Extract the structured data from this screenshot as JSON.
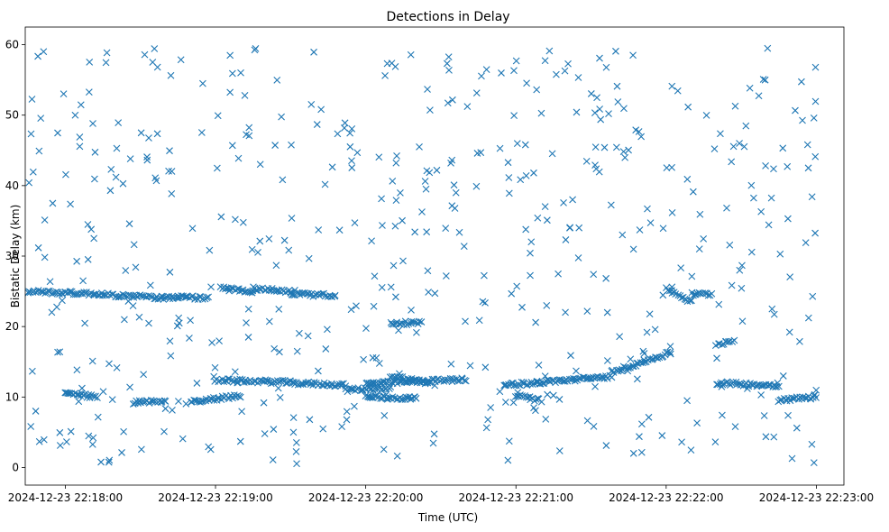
{
  "chart_data": {
    "type": "scatter",
    "title": "Detections in Delay",
    "xlabel": "Time (UTC)",
    "ylabel": "Bistatic Delay (km)",
    "marker": "x",
    "marker_color": "#1f77b4",
    "grid": false,
    "legend": "none",
    "xlim": [
      "2024-12-23 22:17:44",
      "2024-12-23 22:23:11"
    ],
    "ylim": [
      -2.5,
      62.5
    ],
    "x_ticks": [
      "2024-12-23 22:18:00",
      "2024-12-23 22:19:00",
      "2024-12-23 22:20:00",
      "2024-12-23 22:21:00",
      "2024-12-23 22:22:00",
      "2024-12-23 22:23:00"
    ],
    "y_ticks": [
      "0",
      "10",
      "20",
      "30",
      "40",
      "50",
      "60"
    ],
    "series": [
      {
        "points_note": "",
        "x": [],
        "y": []
      }
    ],
    "tracks": [
      {
        "x": [
          "2024-12-23 22:17:45",
          "2024-12-23 22:18:15"
        ],
        "y": [
          25.0,
          24.6
        ]
      },
      {
        "x": [
          "2024-12-23 22:18:16",
          "2024-12-23 22:18:45"
        ],
        "y": [
          24.5,
          24.0
        ]
      },
      {
        "x": [
          "2024-12-23 22:18:45",
          "2024-12-23 22:18:57"
        ],
        "y": [
          24.2,
          24.0
        ]
      },
      {
        "x": [
          "2024-12-23 22:19:02",
          "2024-12-23 22:19:15"
        ],
        "y": [
          25.5,
          25.0
        ]
      },
      {
        "x": [
          "2024-12-23 22:19:15",
          "2024-12-23 22:19:30"
        ],
        "y": [
          25.4,
          25.0
        ]
      },
      {
        "x": [
          "2024-12-23 22:19:30",
          "2024-12-23 22:19:48"
        ],
        "y": [
          24.6,
          24.4
        ]
      },
      {
        "x": [
          "2024-12-23 22:18:00",
          "2024-12-23 22:18:13"
        ],
        "y": [
          10.5,
          10.0
        ]
      },
      {
        "x": [
          "2024-12-23 22:18:27",
          "2024-12-23 22:18:40"
        ],
        "y": [
          9.2,
          9.5
        ]
      },
      {
        "x": [
          "2024-12-23 22:18:50",
          "2024-12-23 22:19:10"
        ],
        "y": [
          9.3,
          10.2
        ]
      },
      {
        "x": [
          "2024-12-23 22:19:00",
          "2024-12-23 22:19:30"
        ],
        "y": [
          12.4,
          12.1
        ]
      },
      {
        "x": [
          "2024-12-23 22:19:30",
          "2024-12-23 22:19:52"
        ],
        "y": [
          12.0,
          11.7
        ]
      },
      {
        "x": [
          "2024-12-23 22:19:52",
          "2024-12-23 22:20:10"
        ],
        "y": [
          11.0,
          11.3
        ]
      },
      {
        "x": [
          "2024-12-23 22:20:00",
          "2024-12-23 22:20:40"
        ],
        "y": [
          11.9,
          12.5
        ]
      },
      {
        "x": [
          "2024-12-23 22:20:10",
          "2024-12-23 22:20:25"
        ],
        "y": [
          13.0,
          12.0
        ]
      },
      {
        "x": [
          "2024-12-23 22:20:00",
          "2024-12-23 22:20:20"
        ],
        "y": [
          10.0,
          9.8
        ]
      },
      {
        "x": [
          "2024-12-23 22:20:10",
          "2024-12-23 22:20:22"
        ],
        "y": [
          20.5,
          20.5
        ]
      },
      {
        "x": [
          "2024-12-23 22:20:55",
          "2024-12-23 22:21:10"
        ],
        "y": [
          11.8,
          12.0
        ]
      },
      {
        "x": [
          "2024-12-23 22:21:10",
          "2024-12-23 22:21:38"
        ],
        "y": [
          12.1,
          12.9
        ]
      },
      {
        "x": [
          "2024-12-23 22:21:00",
          "2024-12-23 22:21:10"
        ],
        "y": [
          10.2,
          9.5
        ]
      },
      {
        "x": [
          "2024-12-23 22:21:38",
          "2024-12-23 22:22:02"
        ],
        "y": [
          13.5,
          16.3
        ]
      },
      {
        "x": [
          "2024-12-23 22:22:00",
          "2024-12-23 22:22:10"
        ],
        "y": [
          25.4,
          23.5
        ]
      },
      {
        "x": [
          "2024-12-23 22:22:10",
          "2024-12-23 22:22:18"
        ],
        "y": [
          24.6,
          24.6
        ]
      },
      {
        "x": [
          "2024-12-23 22:22:20",
          "2024-12-23 22:22:27"
        ],
        "y": [
          17.5,
          18.0
        ]
      },
      {
        "x": [
          "2024-12-23 22:22:20",
          "2024-12-23 22:22:45"
        ],
        "y": [
          12.0,
          11.6
        ]
      },
      {
        "x": [
          "2024-12-23 22:22:45",
          "2024-12-23 22:23:00"
        ],
        "y": [
          9.6,
          10.0
        ]
      }
    ]
  }
}
